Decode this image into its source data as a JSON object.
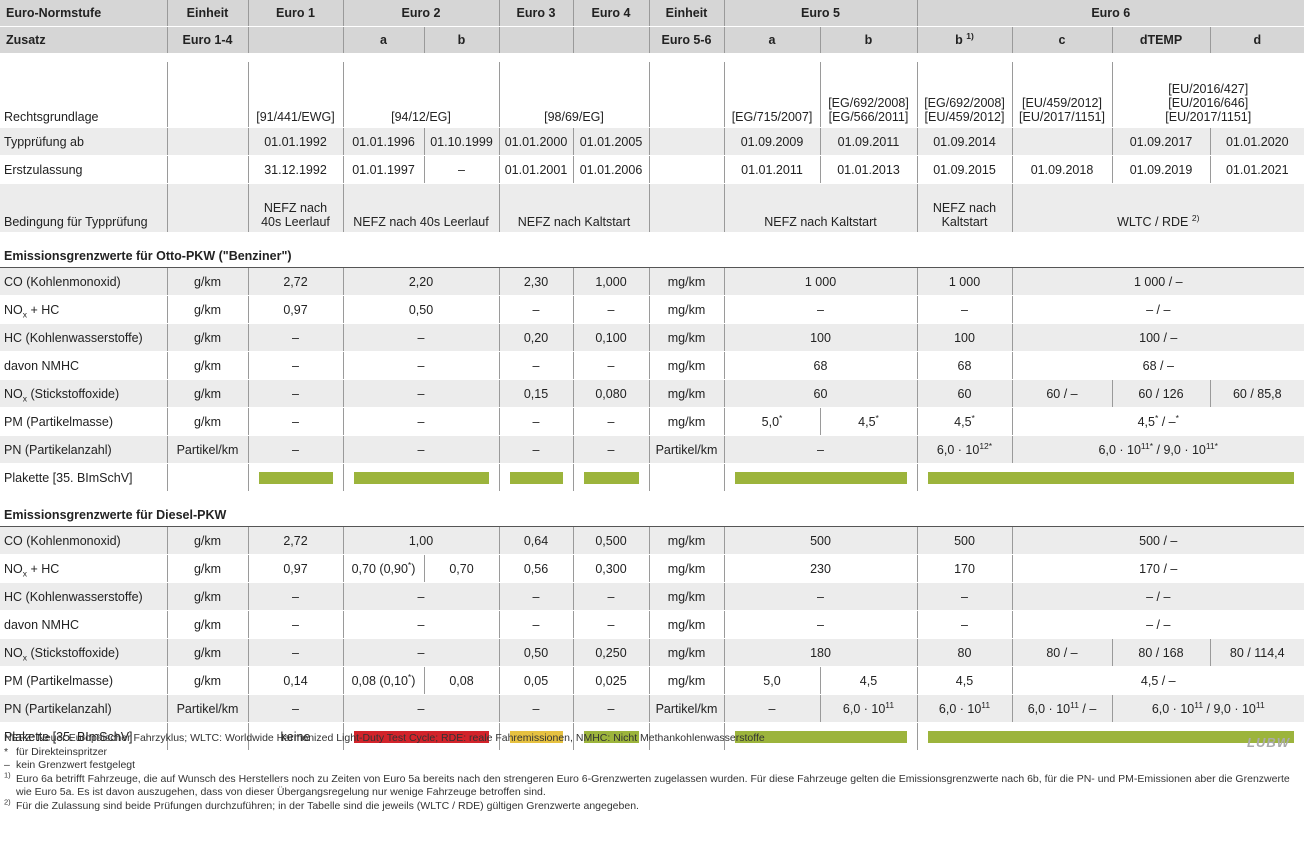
{
  "table": {
    "header_rows": [
      [
        "Euro-Normstufe",
        "Einheit",
        "Euro 1",
        "Euro 2",
        "Euro 3",
        "Euro 4",
        "Einheit",
        "Euro 5",
        "Euro 6"
      ],
      [
        "Zusatz",
        "Euro 1-4",
        null,
        "a",
        "b",
        null,
        null,
        "Euro 5-6",
        "a",
        "b",
        [
          "b ",
          {
            "sup": "1)"
          }
        ],
        "c",
        "dTEMP",
        "d"
      ]
    ],
    "general_rows": [
      [
        "Rechtsgrundlage",
        null,
        "[91/441/EWG]",
        "[94/12/EG]",
        "[98/69/EG]",
        null,
        "[EG/715/2007]",
        "[EG/692/2008]\n[EG/566/2011]",
        "[EG/692/2008]\n[EU/459/2012]",
        "[EU/459/2012]\n[EU/2017/1151]",
        "[EU/2016/427]\n[EU/2016/646]\n[EU/2017/1151]"
      ],
      [
        "Typprüfung ab",
        null,
        "01.01.1992",
        "01.01.1996",
        "01.10.1999",
        "01.01.2000",
        "01.01.2005",
        null,
        "01.09.2009",
        "01.09.2011",
        "01.09.2014",
        null,
        "01.09.2017",
        "01.01.2020"
      ],
      [
        "Erstzulassung",
        null,
        "31.12.1992",
        "01.01.1997",
        "–",
        "01.01.2001",
        "01.01.2006",
        null,
        "01.01.2011",
        "01.01.2013",
        "01.09.2015",
        "01.09.2018",
        "01.09.2019",
        "01.01.2021"
      ],
      [
        "Bedingung für Typprüfung",
        null,
        "NEFZ nach\n40s Leerlauf",
        "NEFZ nach 40s Leerlauf",
        "NEFZ nach Kaltstart",
        null,
        "NEFZ nach Kaltstart",
        "NEFZ nach\nKaltstart",
        [
          "WLTC / RDE ",
          {
            "sup": "2)"
          }
        ]
      ]
    ],
    "sections": [
      {
        "title": "Emissionsgrenzwerte für Otto-PKW (\"Benziner\")",
        "rows": [
          [
            "CO (Kohlenmonoxid)",
            "g/km",
            "2,72",
            "2,20",
            "2,30",
            "1,000",
            "mg/km",
            "1 000",
            "1 000",
            "1 000 / –"
          ],
          [
            [
              "NO",
              {
                "sub": "x"
              },
              " + HC"
            ],
            "g/km",
            "0,97",
            "0,50",
            "–",
            "–",
            "mg/km",
            "–",
            "–",
            "– / –"
          ],
          [
            "HC (Kohlenwasserstoffe)",
            "g/km",
            "–",
            "–",
            "0,20",
            "0,100",
            "mg/km",
            "100",
            "100",
            "100 / –"
          ],
          [
            "davon NMHC",
            "g/km",
            "–",
            "–",
            "–",
            "–",
            "mg/km",
            "68",
            "68",
            "68 / –"
          ],
          [
            [
              "NO",
              {
                "sub": "x"
              },
              " (Stickstoffoxide)"
            ],
            "g/km",
            "–",
            "–",
            "0,15",
            "0,080",
            "mg/km",
            "60",
            "60",
            "60 / –",
            "60 / 126",
            "60 / 85,8"
          ],
          [
            "PM (Partikelmasse)",
            "g/km",
            "–",
            "–",
            "–",
            "–",
            "mg/km",
            [
              "5,0",
              {
                "sup": "*"
              }
            ],
            [
              "4,5",
              {
                "sup": "*"
              }
            ],
            [
              "4,5",
              {
                "sup": "*"
              }
            ],
            [
              "4,5",
              {
                "sup": "*"
              },
              " / –",
              {
                "sup": "*"
              }
            ]
          ],
          [
            "PN (Partikelanzahl)",
            "Partikel/km",
            "–",
            "–",
            "–",
            "–",
            "Partikel/km",
            "–",
            [
              "6,0 · 10",
              {
                "sup": "12*"
              }
            ],
            [
              "6,0 · 10",
              {
                "sup": "11*"
              },
              " / 9,0 · 10",
              {
                "sup": "11*"
              }
            ]
          ],
          [
            "Plakette [35. BImSchV]",
            null,
            {
              "badge": "#9cb43c"
            },
            {
              "badge": "#9cb43c"
            },
            {
              "badge": "#9cb43c"
            },
            {
              "badge": "#9cb43c"
            },
            null,
            {
              "badge": "#9cb43c"
            },
            {
              "badge": "#9cb43c"
            }
          ]
        ]
      },
      {
        "title": "Emissionsgrenzwerte für Diesel-PKW",
        "rows": [
          [
            "CO (Kohlenmonoxid)",
            "g/km",
            "2,72",
            "1,00",
            "0,64",
            "0,500",
            "mg/km",
            "500",
            "500",
            "500 / –"
          ],
          [
            [
              "NO",
              {
                "sub": "x"
              },
              " + HC"
            ],
            "g/km",
            "0,97",
            [
              "0,70 (0,90",
              {
                "sup": "*"
              },
              ")"
            ],
            "0,70",
            "0,56",
            "0,300",
            "mg/km",
            "230",
            "170",
            "170 / –"
          ],
          [
            "HC (Kohlenwasserstoffe)",
            "g/km",
            "–",
            "–",
            "–",
            "–",
            "mg/km",
            "–",
            "–",
            "– / –"
          ],
          [
            "davon NMHC",
            "g/km",
            "–",
            "–",
            "–",
            "–",
            "mg/km",
            "–",
            "–",
            "– / –"
          ],
          [
            [
              "NO",
              {
                "sub": "x"
              },
              " (Stickstoffoxide)"
            ],
            "g/km",
            "–",
            "–",
            "0,50",
            "0,250",
            "mg/km",
            "180",
            "80",
            "80 / –",
            "80 / 168",
            "80 / 114,4"
          ],
          [
            "PM (Partikelmasse)",
            "g/km",
            "0,14",
            [
              "0,08 (0,10",
              {
                "sup": "*"
              },
              ")"
            ],
            "0,08",
            "0,05",
            "0,025",
            "mg/km",
            "5,0",
            "4,5",
            "4,5",
            "4,5 / –"
          ],
          [
            "PN (Partikelanzahl)",
            "Partikel/km",
            "–",
            "–",
            "–",
            "–",
            "Partikel/km",
            "–",
            [
              "6,0 · 10",
              {
                "sup": "11"
              }
            ],
            [
              "6,0 · 10",
              {
                "sup": "11"
              }
            ],
            [
              "6,0 · 10",
              {
                "sup": "11"
              },
              " / –"
            ],
            [
              "6,0 · 10",
              {
                "sup": "11"
              },
              " / 9,0 · 10",
              {
                "sup": "11"
              }
            ]
          ],
          [
            "Plakette [35. BImSchV]",
            null,
            "keine",
            {
              "badge": "#d2232a"
            },
            {
              "badge": "#e6c140"
            },
            {
              "badge": "#9cb43c"
            },
            null,
            {
              "badge": "#9cb43c"
            },
            {
              "badge": "#9cb43c"
            }
          ]
        ]
      }
    ]
  },
  "footnotes": [
    {
      "text": "NEFZ: Neuer Europäischer Fahrzyklus; WLTC: Worldwide Harmonized Light-Duty Test Cycle; RDE: reale Fahremissionen, NMHC: Nicht Methankohlenwasserstoffe"
    },
    {
      "marker": "*",
      "text": "für Direkteinspritzer"
    },
    {
      "marker": "–",
      "text": "kein Grenzwert festgelegt"
    },
    {
      "marker": "1)",
      "text": "Euro 6a betrifft Fahrzeuge, die auf Wunsch des Herstellers noch zu Zeiten von Euro 5a bereits nach den strengeren Euro 6-Grenzwerten zugelassen wurden. Für diese Fahrzeuge gelten die Emissionsgrenzwerte nach 6b, für die PN- und PM-Emissionen aber die Grenzwerte wie Euro 5a. Es ist davon auszugehen, dass von dieser Übergangsregelung nur wenige Fahrzeuge betroffen sind."
    },
    {
      "marker": "2)",
      "text": "Für die Zulassung sind beide Prüfungen durchzuführen; in der Tabelle sind die jeweils (WLTC / RDE) gültigen Grenzwerte angegeben."
    }
  ],
  "logo": "LUBW"
}
